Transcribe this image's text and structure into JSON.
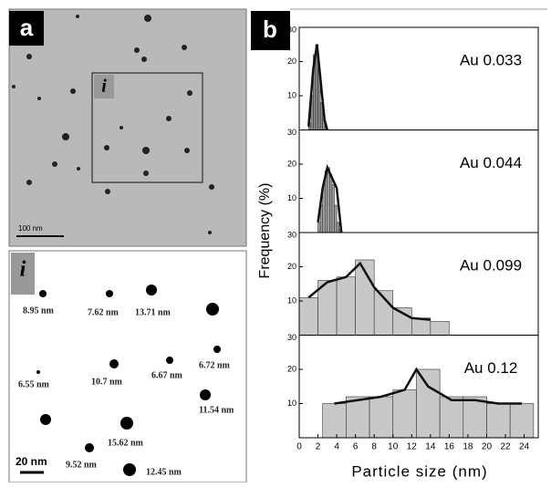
{
  "panel_a": {
    "label": "a",
    "scale_bar": "100 nm",
    "inset_label": "i"
  },
  "panel_i": {
    "label": "i",
    "scale_bar": "20 nm",
    "labels": [
      "8.95 nm",
      "7.62 nm",
      "13.71 nm",
      "6.55 nm",
      "10.7 nm",
      "6.67 nm",
      "6.72 nm",
      "11.54 nm",
      "15.62 nm",
      "9.52 nm",
      "12.45 nm"
    ]
  },
  "panel_b": {
    "label": "b",
    "x_label": "Particle size (nm)",
    "y_label": "Frequency (%)"
  },
  "chart_data": [
    {
      "type": "histogram",
      "annotation": "Au 0.033",
      "color": "#8c8c8c",
      "bins": [
        1,
        1.25,
        1.5,
        1.75,
        2,
        2.25,
        2.5,
        2.75,
        3
      ],
      "values": [
        2,
        10,
        22,
        25,
        18,
        8,
        3,
        1
      ],
      "fit": {
        "x": [
          1,
          1.5,
          1.9,
          2.3,
          2.7,
          3
        ],
        "values": [
          1,
          18,
          25,
          14,
          3,
          0
        ]
      },
      "xlim": [
        0,
        25.5
      ],
      "ylim": [
        0,
        30
      ],
      "yticks": [
        10,
        20,
        30
      ]
    },
    {
      "type": "histogram",
      "annotation": "Au 0.044",
      "color": "#a0a0a0",
      "bins": [
        2,
        2.25,
        2.5,
        2.75,
        3,
        3.25,
        3.5,
        3.75,
        4,
        4.25,
        4.5
      ],
      "values": [
        3,
        8,
        14,
        18,
        19,
        17,
        14,
        8,
        3,
        1
      ],
      "fit": {
        "x": [
          2,
          2.5,
          3,
          3.5,
          4,
          4.5
        ],
        "values": [
          3,
          13,
          19,
          16,
          13,
          0
        ]
      },
      "xlim": [
        0,
        25.5
      ],
      "ylim": [
        0,
        30
      ],
      "yticks": [
        10,
        20,
        30
      ]
    },
    {
      "type": "histogram",
      "annotation": "Au 0.099",
      "color": "#c8c8c8",
      "bins": [
        0,
        2,
        4,
        6,
        8,
        10,
        12,
        14,
        16
      ],
      "values": [
        11,
        16,
        17,
        22,
        13,
        8,
        5,
        4
      ],
      "fit": {
        "x": [
          1,
          3,
          5,
          6.5,
          8,
          10,
          12,
          14
        ],
        "values": [
          11,
          15.5,
          17,
          21,
          14,
          8,
          5,
          4.5
        ]
      },
      "xlim": [
        0,
        25.5
      ],
      "ylim": [
        0,
        30
      ],
      "yticks": [
        10,
        20,
        30
      ]
    },
    {
      "type": "histogram",
      "annotation": "Au 0.12",
      "color": "#c8c8c8",
      "bins": [
        2.5,
        5,
        7.5,
        10,
        12.5,
        15,
        17.5,
        20,
        22.5,
        25
      ],
      "values": [
        10,
        12,
        12,
        14,
        20,
        12,
        12,
        10,
        10
      ],
      "fit": {
        "x": [
          3.75,
          6.25,
          8.75,
          11.25,
          12.5,
          13.75,
          16.25,
          18.75,
          21.25,
          23.75
        ],
        "values": [
          10,
          11,
          12,
          14,
          20,
          15,
          11,
          11,
          10,
          10
        ]
      },
      "xlim": [
        0,
        25.5
      ],
      "ylim": [
        0,
        30
      ],
      "yticks": [
        10,
        20,
        30
      ],
      "xticks": [
        0,
        2,
        4,
        6,
        8,
        10,
        12,
        14,
        16,
        18,
        20,
        22,
        24
      ]
    }
  ]
}
